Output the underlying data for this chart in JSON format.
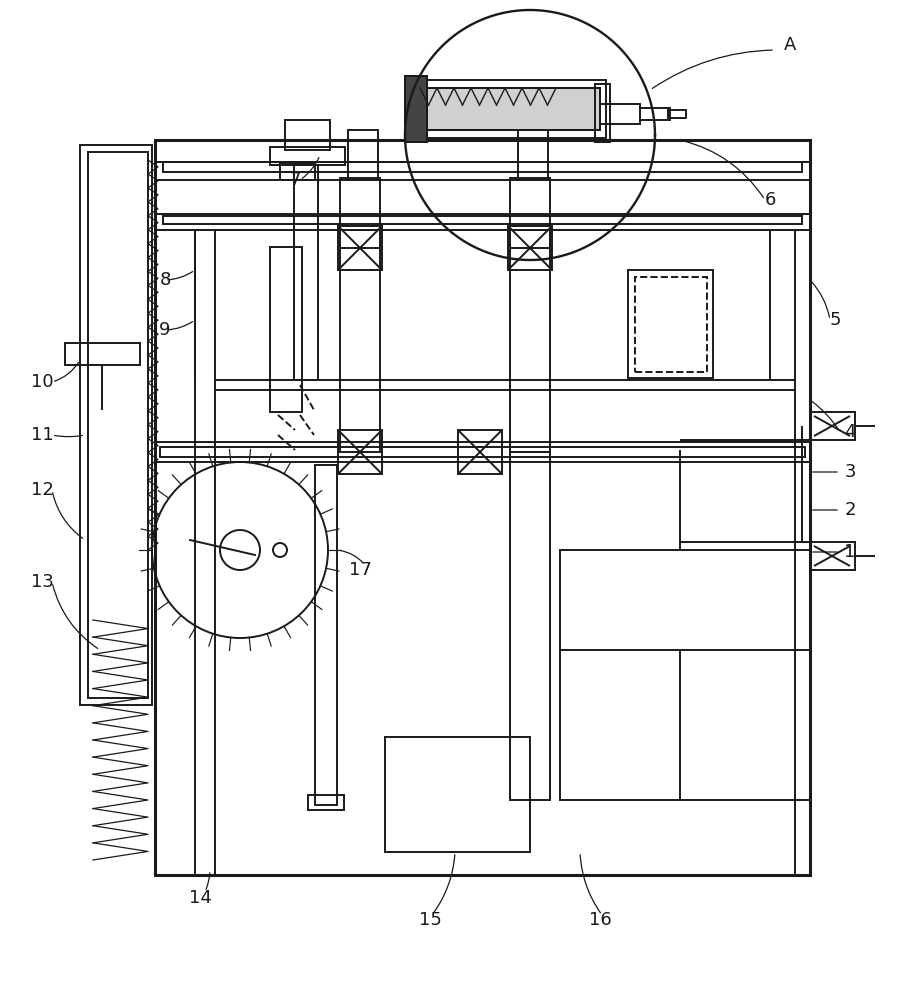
{
  "bg_color": "#ffffff",
  "lc": "#1a1a1a",
  "lw": 1.4,
  "lw_thick": 2.2
}
